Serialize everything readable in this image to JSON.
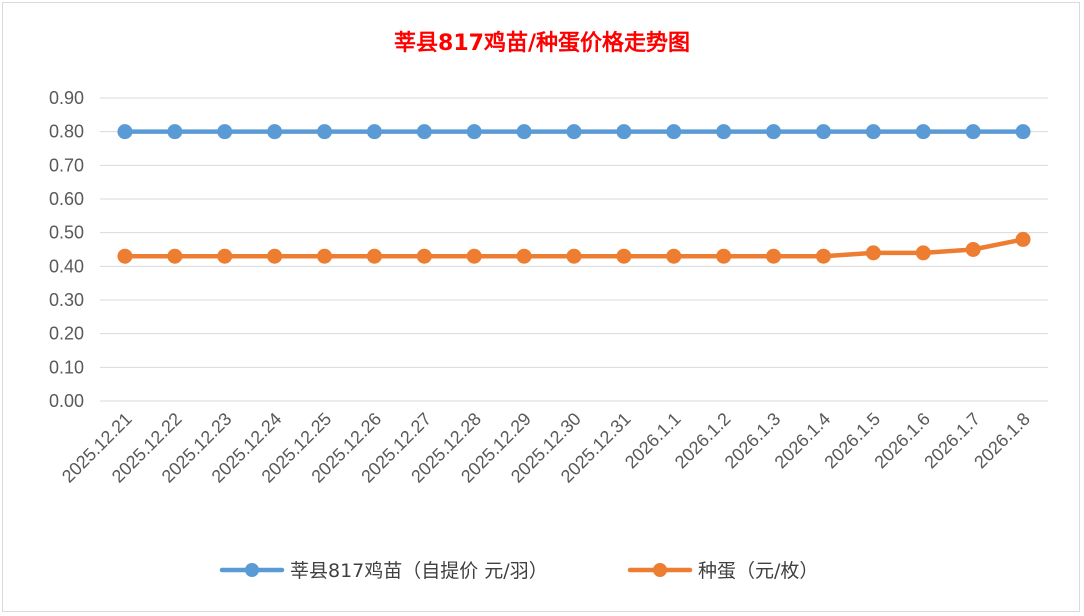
{
  "chart_data": {
    "type": "line",
    "title": "莘县817鸡苗/种蛋价格走势图",
    "xlabel": "",
    "ylabel": "",
    "ylim": [
      0,
      0.9
    ],
    "yticks": [
      "0.00",
      "0.10",
      "0.20",
      "0.30",
      "0.40",
      "0.50",
      "0.60",
      "0.70",
      "0.80",
      "0.90"
    ],
    "grid": true,
    "legend_position": "bottom",
    "categories": [
      "2025.12.21",
      "2025.12.22",
      "2025.12.23",
      "2025.12.24",
      "2025.12.25",
      "2025.12.26",
      "2025.12.27",
      "2025.12.28",
      "2025.12.29",
      "2025.12.30",
      "2025.12.31",
      "2026.1.1",
      "2026.1.2",
      "2026.1.3",
      "2026.1.4",
      "2026.1.5",
      "2026.1.6",
      "2026.1.7",
      "2026.1.8"
    ],
    "series": [
      {
        "name": "莘县817鸡苗（自提价 元/羽）",
        "color": "#5b9bd5",
        "values": [
          0.8,
          0.8,
          0.8,
          0.8,
          0.8,
          0.8,
          0.8,
          0.8,
          0.8,
          0.8,
          0.8,
          0.8,
          0.8,
          0.8,
          0.8,
          0.8,
          0.8,
          0.8,
          0.8
        ]
      },
      {
        "name": "种蛋（元/枚）",
        "color": "#ed7d31",
        "values": [
          0.43,
          0.43,
          0.43,
          0.43,
          0.43,
          0.43,
          0.43,
          0.43,
          0.43,
          0.43,
          0.43,
          0.43,
          0.43,
          0.43,
          0.43,
          0.44,
          0.44,
          0.45,
          0.48
        ]
      }
    ]
  }
}
